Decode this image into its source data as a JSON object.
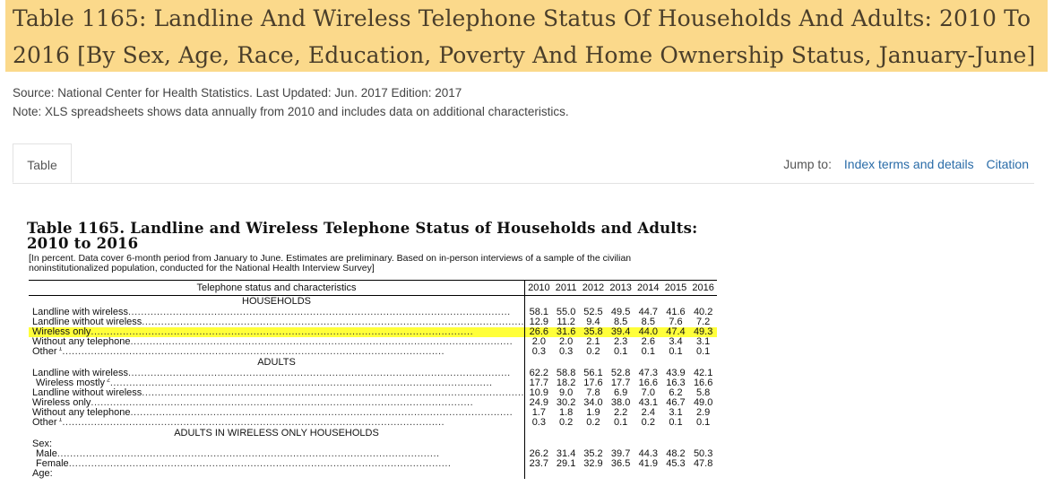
{
  "page": {
    "title": "Table 1165: Landline And Wireless Telephone Status Of Households And Adults: 2010 To 2016 [By Sex, Age, Race, Education, Poverty And Home Ownership Status, January-June]",
    "source": "Source: National Center for Health Statistics. Last Updated: Jun. 2017 Edition: 2017",
    "note": "Note: XLS spreadsheets shows data annually from 2010 and includes data on additional characteristics."
  },
  "tabs": {
    "table": "Table"
  },
  "jump": {
    "label": "Jump to:",
    "index": "Index terms and details",
    "citation": "Citation"
  },
  "scan": {
    "title": "Table 1165. Landline and Wireless Telephone Status of Households and Adults: 2010 to 2016",
    "note": "[In percent. Data cover 6-month period from January to June. Estimates are preliminary. Based on in-person interviews of a sample of the civilian noninstitutionalized population, conducted for the National Health Interview Survey]",
    "header": [
      "Telephone status and characteristics",
      "2010",
      "2011",
      "2012",
      "2013",
      "2014",
      "2015",
      "2016"
    ],
    "rows": [
      {
        "type": "section",
        "label": "HOUSEHOLDS"
      },
      {
        "label": "Landline with wireless",
        "values": [
          "58.1",
          "55.0",
          "52.5",
          "49.5",
          "44.7",
          "41.6",
          "40.2"
        ]
      },
      {
        "label": "Landline without wireless",
        "values": [
          "12.9",
          "11.2",
          "9.4",
          "8.5",
          "8.5",
          "7.6",
          "7.2"
        ]
      },
      {
        "label": "Wireless only",
        "values": [
          "26.6",
          "31.6",
          "35.8",
          "39.4",
          "44.0",
          "47.4",
          "49.3"
        ],
        "highlight": true
      },
      {
        "label": "Without any telephone",
        "values": [
          "2.0",
          "2.0",
          "2.1",
          "2.3",
          "2.6",
          "3.4",
          "3.1"
        ]
      },
      {
        "label": "Other",
        "sup": "1",
        "values": [
          "0.3",
          "0.3",
          "0.2",
          "0.1",
          "0.1",
          "0.1",
          "0.1"
        ]
      },
      {
        "type": "section",
        "label": "ADULTS"
      },
      {
        "label": "Landline with wireless",
        "values": [
          "62.2",
          "58.8",
          "56.1",
          "52.8",
          "47.3",
          "43.9",
          "42.1"
        ]
      },
      {
        "label": "Wireless mostly",
        "sup": "2",
        "indent": 1,
        "values": [
          "17.7",
          "18.2",
          "17.6",
          "17.7",
          "16.6",
          "16.3",
          "16.6"
        ]
      },
      {
        "label": "Landline without wireless",
        "values": [
          "10.9",
          "9.0",
          "7.8",
          "6.9",
          "7.0",
          "6.2",
          "5.8"
        ]
      },
      {
        "label": "Wireless only",
        "values": [
          "24.9",
          "30.2",
          "34.0",
          "38.0",
          "43.1",
          "46.7",
          "49.0"
        ]
      },
      {
        "label": "Without any telephone",
        "values": [
          "1.7",
          "1.8",
          "1.9",
          "2.2",
          "2.4",
          "3.1",
          "2.9"
        ]
      },
      {
        "label": "Other",
        "sup": "1",
        "values": [
          "0.3",
          "0.2",
          "0.2",
          "0.1",
          "0.2",
          "0.1",
          "0.1"
        ]
      },
      {
        "type": "section",
        "label": "ADULTS IN WIRELESS ONLY HOUSEHOLDS"
      },
      {
        "type": "plain",
        "label": "Sex:"
      },
      {
        "label": "Male",
        "indent": 1,
        "values": [
          "26.2",
          "31.4",
          "35.2",
          "39.7",
          "44.3",
          "48.2",
          "50.3"
        ]
      },
      {
        "label": "Female",
        "indent": 1,
        "values": [
          "23.7",
          "29.1",
          "32.9",
          "36.5",
          "41.9",
          "45.3",
          "47.8"
        ]
      },
      {
        "type": "plain",
        "label": "Age:"
      }
    ]
  }
}
